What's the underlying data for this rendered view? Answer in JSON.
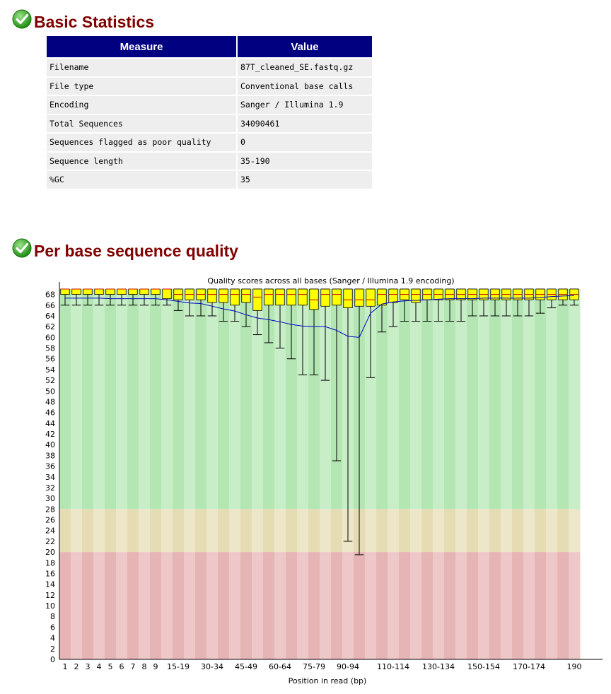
{
  "sections": {
    "basic": {
      "title": "Basic Statistics",
      "icon": "check-circle-icon",
      "status_color": "#2e9e1e"
    },
    "quality": {
      "title": "Per base sequence quality",
      "icon": "check-circle-icon",
      "status_color": "#2e9e1e"
    }
  },
  "stats_table": {
    "header": {
      "measure": "Measure",
      "value": "Value"
    },
    "rows": [
      {
        "measure": "Filename",
        "value": "87T_cleaned_SE.fastq.gz"
      },
      {
        "measure": "File type",
        "value": "Conventional base calls"
      },
      {
        "measure": "Encoding",
        "value": "Sanger / Illumina 1.9"
      },
      {
        "measure": "Total Sequences",
        "value": "34090461"
      },
      {
        "measure": "Sequences flagged as poor quality",
        "value": "0"
      },
      {
        "measure": "Sequence length",
        "value": "35-190"
      },
      {
        "measure": "%GC",
        "value": "35"
      }
    ]
  },
  "chart_data": {
    "type": "boxplot",
    "title": "Quality scores across all bases (Sanger / Illumina 1.9 encoding)",
    "xlabel": "Position in read (bp)",
    "ylabel": "",
    "ylim": [
      0,
      69
    ],
    "y_ticks": [
      0,
      2,
      4,
      6,
      8,
      10,
      12,
      14,
      16,
      18,
      20,
      22,
      24,
      26,
      28,
      30,
      32,
      34,
      36,
      38,
      40,
      42,
      44,
      46,
      48,
      50,
      52,
      54,
      56,
      58,
      60,
      62,
      64,
      66,
      68
    ],
    "zones": [
      {
        "from": 28,
        "to": 69,
        "color": "#b4e6b4",
        "alt_color": "#c8eec8"
      },
      {
        "from": 20,
        "to": 28,
        "color": "#e6dcb4",
        "alt_color": "#eee6c8"
      },
      {
        "from": 0,
        "to": 20,
        "color": "#e6b4b4",
        "alt_color": "#eec8c8"
      }
    ],
    "box_color": "#ffff00",
    "mean_line_color": "#0000c8",
    "categories": [
      "1",
      "2",
      "3",
      "4",
      "5",
      "6",
      "7",
      "8",
      "9",
      "10-14",
      "15-19",
      "20-24",
      "25-29",
      "30-34",
      "35-39",
      "40-44",
      "45-49",
      "50-54",
      "55-59",
      "60-64",
      "65-69",
      "70-74",
      "75-79",
      "80-84",
      "85-89",
      "90-94",
      "95-99",
      "100-104",
      "105-109",
      "110-114",
      "115-119",
      "120-124",
      "125-129",
      "130-134",
      "135-139",
      "140-144",
      "145-149",
      "150-154",
      "155-159",
      "160-164",
      "165-169",
      "170-174",
      "175-179",
      "180-184",
      "185-189",
      "190"
    ],
    "tick_labels": [
      "1",
      "2",
      "3",
      "4",
      "5",
      "6",
      "7",
      "8",
      "9",
      "",
      "15-19",
      "",
      "30-34",
      "",
      "45-49",
      "",
      "60-64",
      "",
      "75-79",
      "",
      "90-94",
      "",
      "110-114",
      "",
      "130-134",
      "",
      "150-154",
      "",
      "170-174",
      "",
      "190"
    ],
    "tick_label_index": [
      0,
      1,
      2,
      3,
      4,
      5,
      6,
      7,
      8,
      null,
      10,
      null,
      13,
      null,
      16,
      null,
      19,
      null,
      22,
      null,
      25,
      null,
      29,
      null,
      33,
      null,
      37,
      null,
      41,
      null,
      45
    ],
    "series": [
      {
        "name": "box_q1",
        "values": [
          68,
          68,
          68,
          68,
          68,
          68,
          68,
          68,
          68,
          67.2,
          67,
          67,
          67,
          66.5,
          66.5,
          66,
          66.5,
          65,
          66,
          66,
          66,
          66,
          65.2,
          65.8,
          66,
          65.5,
          65.8,
          65.8,
          66,
          66.5,
          67,
          66.5,
          67,
          67,
          67,
          67,
          67,
          67,
          67,
          67,
          67,
          67,
          67,
          67,
          67,
          67
        ]
      },
      {
        "name": "box_q3",
        "values": [
          69,
          69,
          69,
          69,
          69,
          69,
          69,
          69,
          69,
          69,
          69,
          69,
          69,
          69,
          69,
          69,
          69,
          69,
          69,
          69,
          69,
          69,
          69,
          69,
          69,
          69,
          69,
          69,
          69,
          69,
          69,
          69,
          69,
          69,
          69,
          69,
          69,
          69,
          69,
          69,
          69,
          69,
          69,
          69,
          69,
          69
        ]
      },
      {
        "name": "median",
        "values": [
          69,
          69,
          69,
          69,
          69,
          69,
          69,
          69,
          69,
          69,
          68,
          68,
          68,
          68,
          68,
          68,
          68,
          67.5,
          68,
          68,
          68,
          68,
          67,
          68,
          68,
          67,
          67,
          67,
          68,
          68,
          68,
          68,
          68,
          68,
          68,
          68,
          68,
          68,
          68,
          68,
          68,
          68,
          68,
          68,
          68,
          68
        ]
      },
      {
        "name": "whisker_low",
        "values": [
          66,
          66,
          66,
          66,
          66,
          66,
          66,
          66,
          66,
          66,
          65,
          64,
          64,
          64,
          63,
          63,
          62,
          60.5,
          59,
          58,
          56,
          53,
          53,
          52,
          37,
          22,
          19.5,
          52.5,
          61,
          62,
          63,
          63,
          63,
          63,
          63,
          63,
          64,
          64,
          64,
          64,
          64,
          64,
          64.5,
          65.5,
          66,
          66
        ]
      },
      {
        "name": "whisker_high",
        "values": [
          69,
          69,
          69,
          69,
          69,
          69,
          69,
          69,
          69,
          69,
          69,
          69,
          69,
          69,
          69,
          69,
          69,
          69,
          69,
          69,
          69,
          69,
          69,
          69,
          69,
          69,
          69,
          69,
          69,
          69,
          69,
          69,
          69,
          69,
          69,
          69,
          69,
          69,
          69,
          69,
          69,
          69,
          69,
          69,
          69,
          69
        ]
      },
      {
        "name": "mean",
        "values": [
          67.3,
          67.3,
          67.3,
          67.3,
          67.2,
          67.2,
          67.2,
          67.2,
          67.2,
          67.0,
          66.7,
          66.4,
          66.3,
          65.8,
          65.3,
          64.9,
          64.2,
          63.6,
          63.3,
          62.9,
          62.4,
          62.1,
          62.0,
          62.0,
          61.3,
          60.2,
          60.0,
          64.5,
          66.2,
          66.6,
          66.8,
          66.9,
          67.0,
          67.1,
          67.2,
          67.2,
          67.2,
          67.3,
          67.3,
          67.3,
          67.3,
          67.3,
          67.4,
          67.6,
          67.7,
          67.8
        ]
      }
    ]
  }
}
